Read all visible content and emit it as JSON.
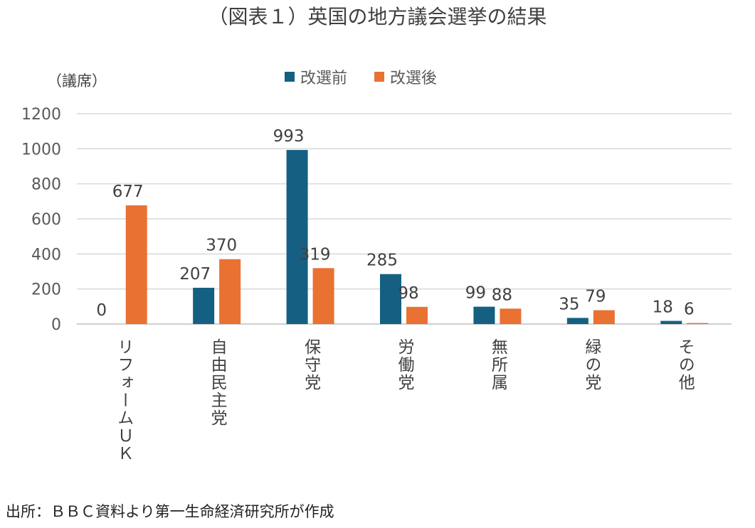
{
  "chart_data": {
    "type": "bar",
    "title": "（図表１）英国の地方議会選挙の結果",
    "ylabel": "（議席）",
    "xlabel": "",
    "ylim": [
      0,
      1200
    ],
    "yticks": [
      0,
      200,
      400,
      600,
      800,
      1000,
      1200
    ],
    "grid": true,
    "legend_position": "top",
    "categories": [
      "リフォームＵＫ",
      "自由民主党",
      "保守党",
      "労働党",
      "無所属",
      "緑の党",
      "その他"
    ],
    "series": [
      {
        "name": "改選前",
        "color": "#156082",
        "values": [
          0,
          207,
          993,
          285,
          99,
          35,
          18
        ]
      },
      {
        "name": "改選後",
        "color": "#E97132",
        "values": [
          677,
          370,
          319,
          98,
          88,
          79,
          6
        ]
      }
    ]
  },
  "source": "出所：ＢＢＣ資料より第一生命経済研究所が作成"
}
